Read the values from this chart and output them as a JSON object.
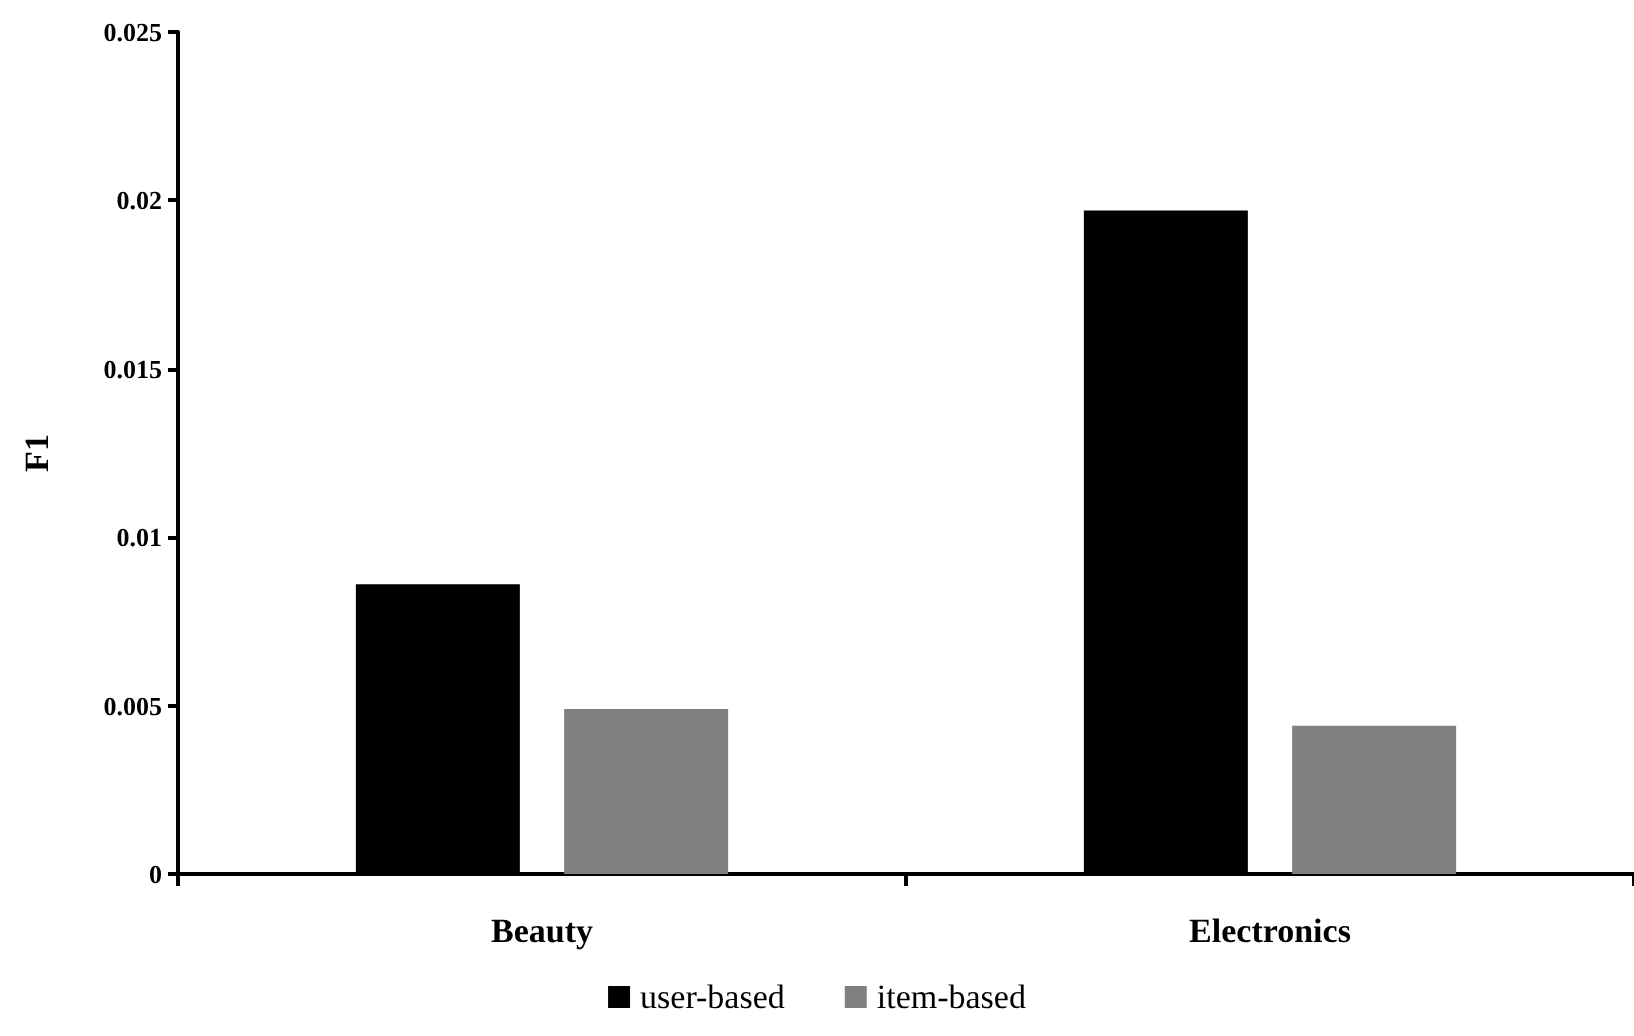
{
  "chart_data": {
    "type": "bar",
    "ylabel": "F1",
    "categories": [
      "Beauty",
      "Electronics"
    ],
    "series": [
      {
        "name": "user-based",
        "color": "#000000",
        "values": [
          0.0086,
          0.0197
        ]
      },
      {
        "name": "item-based",
        "color": "#808080",
        "values": [
          0.0049,
          0.0044
        ]
      }
    ],
    "ylim": [
      0,
      0.025
    ],
    "yticks": [
      0,
      0.005,
      0.01,
      0.015,
      0.02,
      0.025
    ],
    "grid": false,
    "legend": "bottom"
  }
}
